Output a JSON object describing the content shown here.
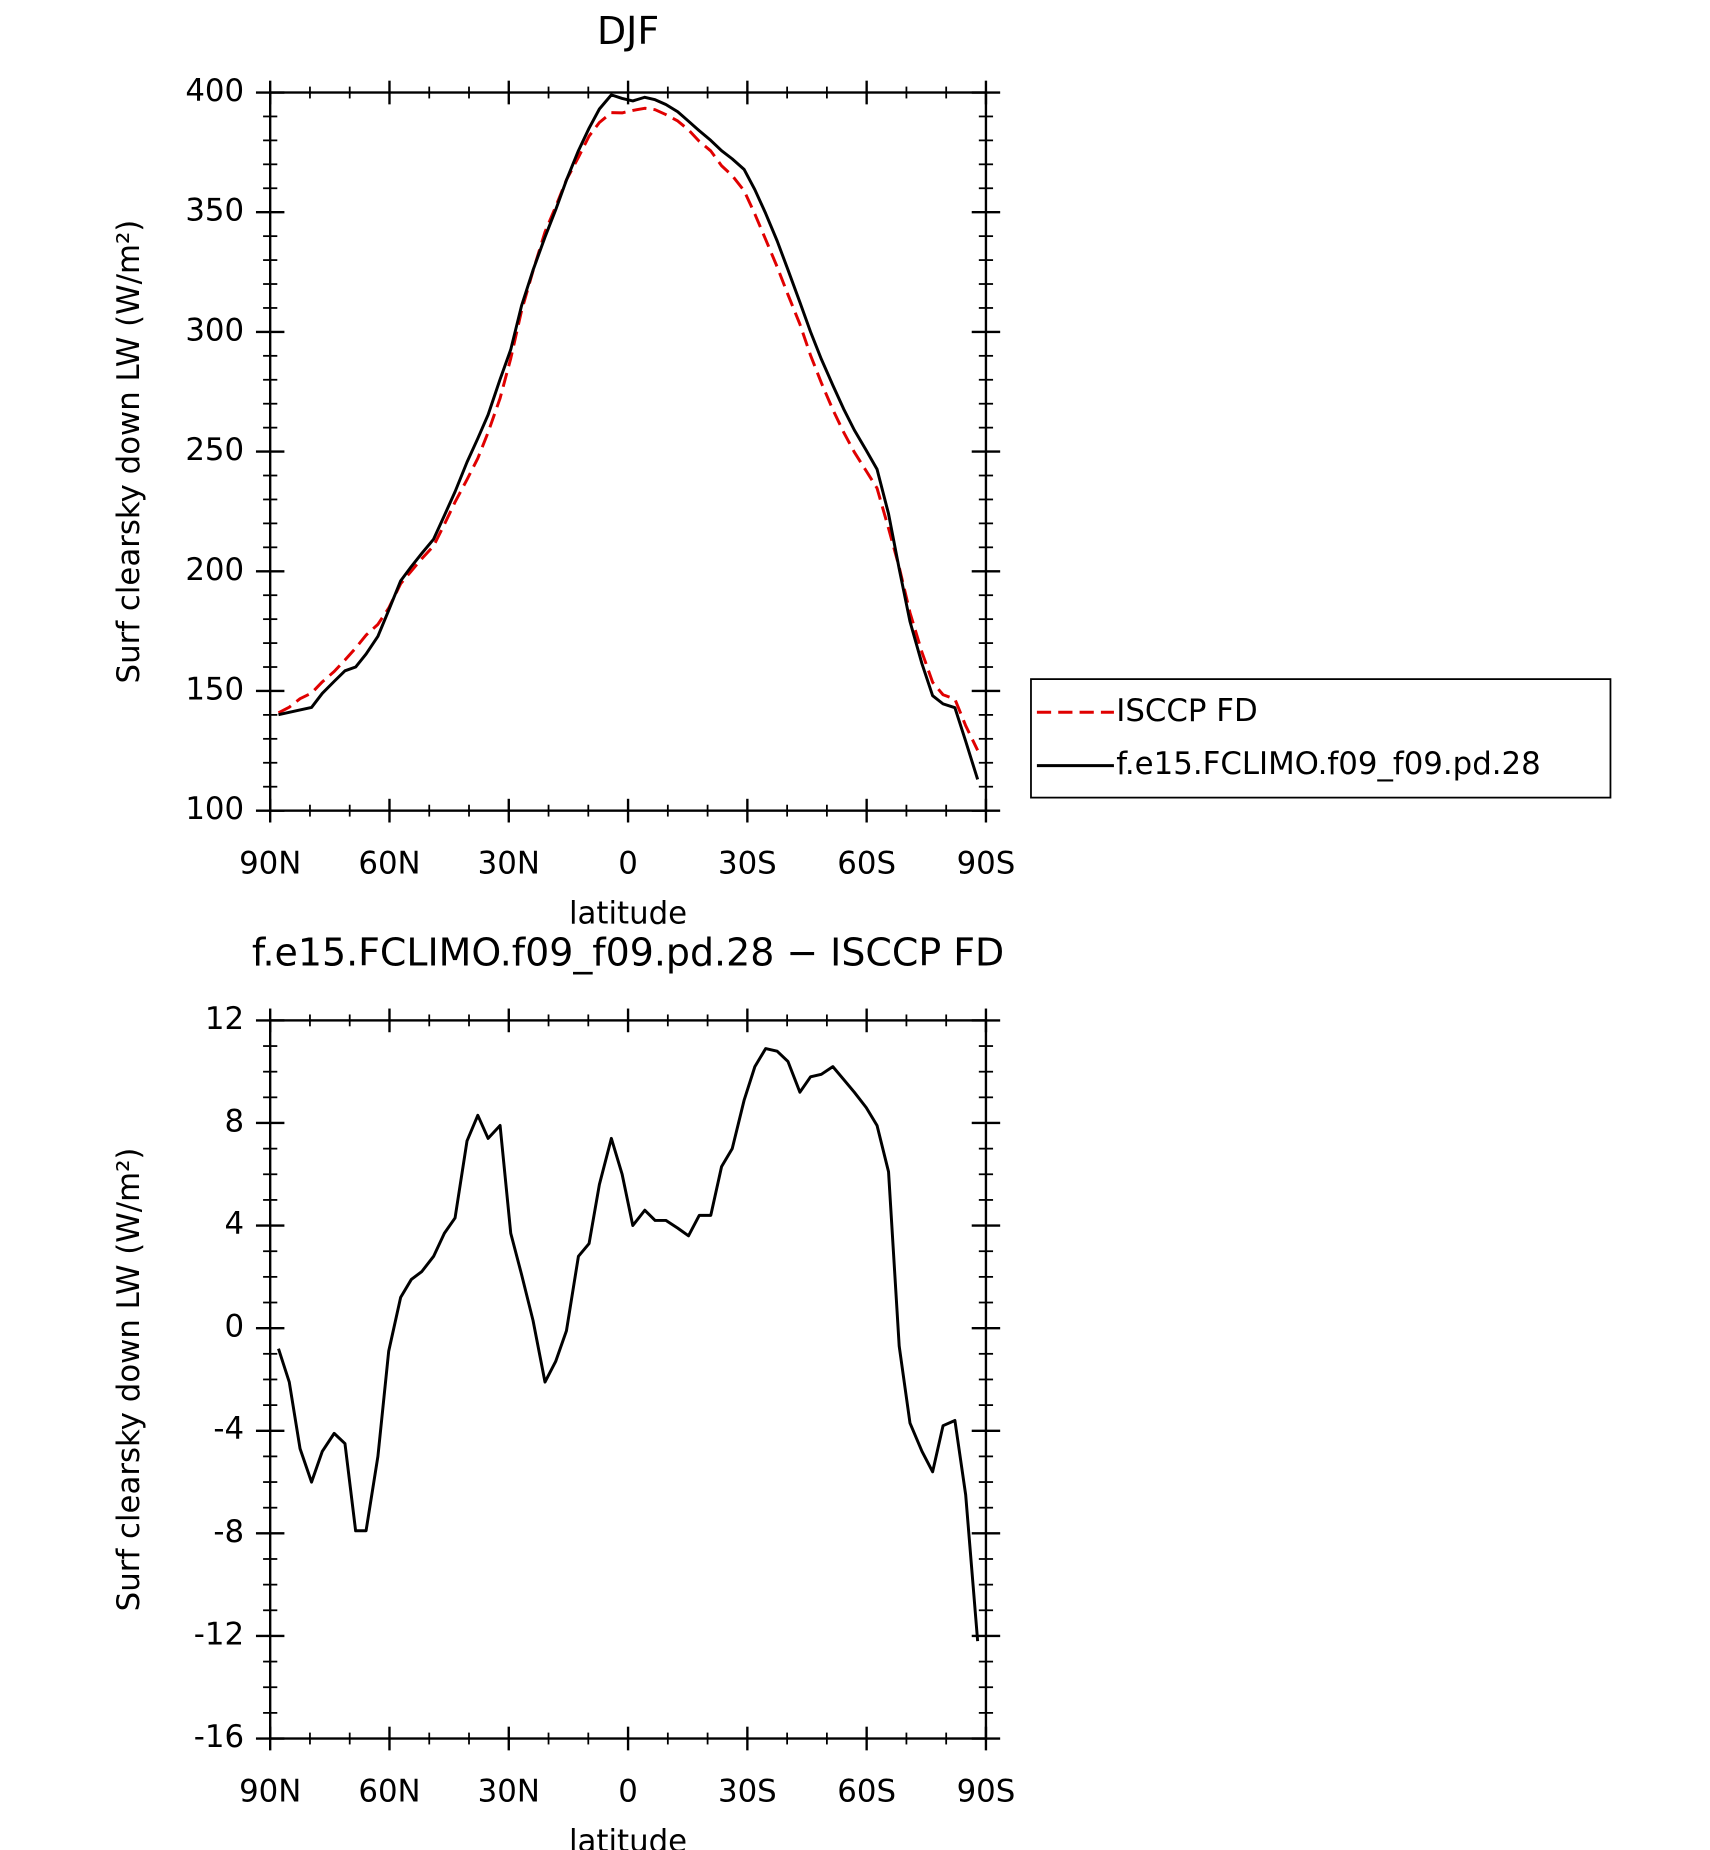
{
  "chart_data": [
    {
      "type": "line",
      "title": "DJF",
      "x_label": "latitude",
      "y_label": "Surf clearsky down LW (W/m²)",
      "x": [
        87.9,
        85.2,
        82.5,
        79.6,
        76.9,
        73.9,
        71.2,
        68.5,
        65.9,
        62.9,
        60.2,
        57.2,
        54.5,
        51.9,
        48.9,
        46.2,
        43.5,
        40.5,
        37.8,
        35.2,
        32.2,
        29.5,
        26.8,
        23.9,
        20.9,
        18.2,
        15.5,
        12.5,
        9.8,
        7.2,
        4.2,
        1.5,
        -1.2,
        -4.2,
        -6.8,
        -9.5,
        -12.5,
        -15.2,
        -17.9,
        -20.8,
        -23.5,
        -26.2,
        -29.2,
        -31.9,
        -34.6,
        -37.5,
        -40.2,
        -43.2,
        -45.9,
        -48.6,
        -51.5,
        -54.2,
        -56.9,
        -59.9,
        -62.6,
        -65.5,
        -68.2,
        -70.9,
        -73.9,
        -76.6,
        -79.2,
        -82.2,
        -84.9,
        -87.9
      ],
      "series": [
        {
          "name": "ISCCP FD",
          "color": "#e00000",
          "line_style": "dashed",
          "values": [
            140.9,
            143.2,
            146.8,
            149.1,
            153.8,
            158.1,
            162.9,
            167.9,
            173.3,
            177.8,
            184.6,
            194.8,
            200.1,
            205.2,
            210.6,
            219.6,
            228.9,
            238.3,
            247.2,
            258.0,
            272.3,
            288.9,
            308.8,
            325.5,
            341.7,
            352.3,
            363.5,
            372.9,
            381.8,
            387.5,
            391.6,
            391.5,
            392.5,
            393.4,
            392.8,
            390.8,
            388.1,
            384.4,
            379.6,
            375.6,
            369.4,
            365.3,
            358.9,
            349.2,
            338.6,
            327.2,
            315.6,
            303.2,
            290.2,
            278.7,
            267.5,
            258.1,
            249.8,
            241.9,
            234.7,
            217.9,
            201.7,
            182.7,
            166.2,
            153.6,
            148.4,
            146.6,
            135.5,
            125.2
          ]
        },
        {
          "name": "f.e15.FCLIMO.f09_f09.pd.28",
          "color": "#000000",
          "line_style": "solid",
          "values": [
            140.1,
            141.1,
            142.1,
            143.1,
            149.0,
            154.0,
            158.4,
            160.0,
            165.4,
            172.8,
            183.7,
            196.0,
            202.0,
            207.4,
            213.4,
            223.3,
            233.2,
            245.6,
            255.5,
            265.4,
            280.2,
            292.6,
            310.9,
            325.8,
            339.6,
            351.0,
            363.4,
            375.7,
            385.1,
            393.1,
            399.0,
            397.5,
            396.5,
            398.0,
            397.0,
            395.0,
            392.0,
            388.0,
            384.0,
            380.0,
            375.7,
            372.3,
            367.8,
            359.4,
            349.5,
            338.0,
            326.0,
            312.4,
            300.0,
            288.6,
            277.7,
            267.8,
            259.0,
            250.5,
            242.6,
            224.0,
            201.0,
            179.0,
            161.4,
            148.0,
            144.6,
            143.0,
            129.0,
            113.0
          ]
        }
      ],
      "xlim": [
        90,
        -90
      ],
      "xticks": [
        {
          "value": 90,
          "label": "90N"
        },
        {
          "value": 60,
          "label": "60N"
        },
        {
          "value": 30,
          "label": "30N"
        },
        0,
        {
          "value": -30,
          "label": "30S"
        },
        {
          "value": -60,
          "label": "60S"
        },
        {
          "value": -90,
          "label": "90S"
        }
      ],
      "xminorticks": [
        80,
        70,
        50,
        40,
        20,
        10,
        -10,
        -20,
        -40,
        -50,
        -70,
        -80
      ],
      "ylim": [
        100,
        400
      ],
      "yticks": [
        100,
        150,
        200,
        250,
        300,
        350,
        400
      ],
      "yminorticks": [
        110,
        120,
        130,
        140,
        160,
        170,
        180,
        190,
        210,
        220,
        230,
        240,
        260,
        270,
        280,
        290,
        310,
        320,
        330,
        340,
        360,
        370,
        380,
        390
      ],
      "legend": "right"
    },
    {
      "type": "line",
      "title": "f.e15.FCLIMO.f09_f09.pd.28 − ISCCP FD",
      "x_label": "latitude",
      "y_label": "Surf clearsky down LW (W/m²)",
      "x": [
        87.9,
        85.2,
        82.5,
        79.6,
        76.9,
        73.9,
        71.2,
        68.5,
        65.9,
        62.9,
        60.2,
        57.2,
        54.5,
        51.9,
        48.9,
        46.2,
        43.5,
        40.5,
        37.8,
        35.2,
        32.2,
        29.5,
        26.8,
        23.9,
        20.9,
        18.2,
        15.5,
        12.5,
        9.8,
        7.2,
        4.2,
        1.5,
        -1.2,
        -4.2,
        -6.8,
        -9.5,
        -12.5,
        -15.2,
        -17.9,
        -20.8,
        -23.5,
        -26.2,
        -29.2,
        -31.9,
        -34.6,
        -37.5,
        -40.2,
        -43.2,
        -45.9,
        -48.6,
        -51.5,
        -54.2,
        -56.9,
        -59.9,
        -62.6,
        -65.5,
        -68.2,
        -70.9,
        -73.9,
        -76.6,
        -79.2,
        -82.2,
        -84.9,
        -87.9
      ],
      "color": "#000000",
      "values": [
        -0.8,
        -2.1,
        -4.7,
        -6.0,
        -4.8,
        -4.1,
        -4.5,
        -7.9,
        -7.9,
        -5.0,
        -0.9,
        1.2,
        1.9,
        2.2,
        2.8,
        3.7,
        4.3,
        7.3,
        8.3,
        7.4,
        7.9,
        3.7,
        2.1,
        0.3,
        -2.1,
        -1.3,
        -0.1,
        2.8,
        3.3,
        5.6,
        7.4,
        6.0,
        4.0,
        4.6,
        4.2,
        4.2,
        3.9,
        3.6,
        4.4,
        4.4,
        6.3,
        7.0,
        8.9,
        10.2,
        10.9,
        10.8,
        10.4,
        9.2,
        9.8,
        9.9,
        10.2,
        9.7,
        9.2,
        8.6,
        7.9,
        6.1,
        -0.7,
        -3.7,
        -4.8,
        -5.6,
        -3.8,
        -3.6,
        -6.5,
        -12.2
      ],
      "xlim": [
        90,
        -90
      ],
      "xticks": [
        {
          "value": 90,
          "label": "90N"
        },
        {
          "value": 60,
          "label": "60N"
        },
        {
          "value": 30,
          "label": "30N"
        },
        0,
        {
          "value": -30,
          "label": "30S"
        },
        {
          "value": -60,
          "label": "60S"
        },
        {
          "value": -90,
          "label": "90S"
        }
      ],
      "xminorticks": [
        80,
        70,
        50,
        40,
        20,
        10,
        -10,
        -20,
        -40,
        -50,
        -70,
        -80
      ],
      "ylim": [
        -16,
        12
      ],
      "yticks": [
        -16,
        -12,
        -8,
        -4,
        0,
        4,
        8,
        12
      ],
      "yminorticks": [
        -15,
        -14,
        -13,
        -11,
        -10,
        -9,
        -7,
        -6,
        -5,
        -3,
        -2,
        -1,
        1,
        2,
        3,
        5,
        6,
        7,
        9,
        10,
        11
      ]
    }
  ]
}
